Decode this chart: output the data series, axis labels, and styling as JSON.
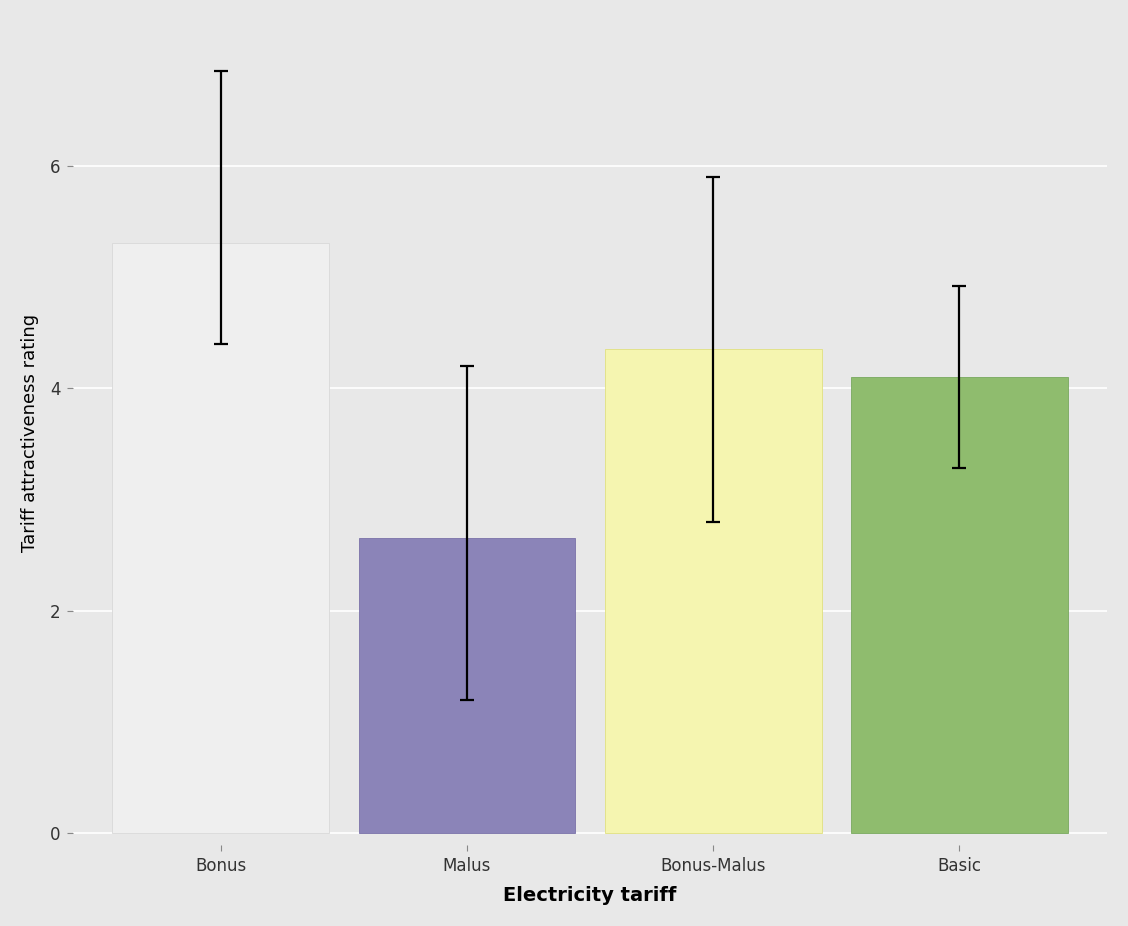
{
  "categories": [
    "Bonus",
    "Malus",
    "Bonus-Malus",
    "Basic"
  ],
  "values": [
    5.3,
    2.65,
    4.35,
    4.1
  ],
  "errors_upper": [
    1.55,
    1.55,
    1.55,
    0.82
  ],
  "errors_lower": [
    0.9,
    1.45,
    1.55,
    0.82
  ],
  "bar_colors": [
    "#efefef",
    "#8b84b8",
    "#f5f5b0",
    "#8fbc6e"
  ],
  "bar_edgecolors": [
    "#d8d8d8",
    "#7a72a8",
    "#e0e080",
    "#78a85e"
  ],
  "xlabel": "Electricity tariff",
  "ylabel": "Tariff attractiveness rating",
  "ylim": [
    -0.1,
    7.3
  ],
  "yticks": [
    0,
    2,
    4,
    6
  ],
  "background_color": "#e8e8e8",
  "panel_color": "#e8e8e8",
  "grid_color": "#ffffff",
  "xlabel_fontsize": 14,
  "ylabel_fontsize": 13,
  "tick_fontsize": 12,
  "bar_width": 0.88,
  "capsize": 5,
  "error_linewidth": 1.6
}
